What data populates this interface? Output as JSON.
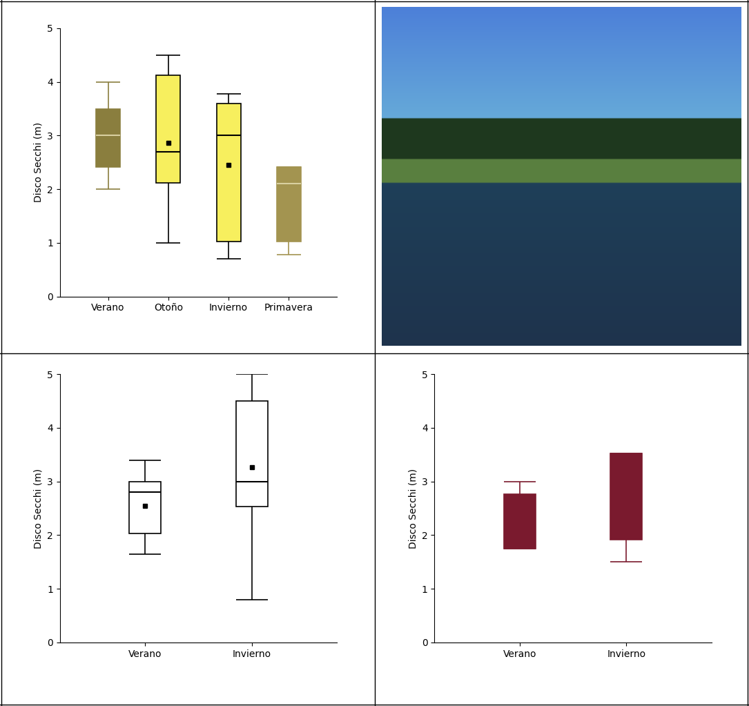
{
  "chart_data": [
    {
      "type": "box",
      "ylabel": "Disco Secchi (m)",
      "categories": [
        "Verano",
        "Otoño",
        "Invierno",
        "Primavera"
      ],
      "values": [
        {
          "whislo": 2.0,
          "q1": 2.42,
          "median": 3.0,
          "q3": 3.5,
          "whishi": 4.0,
          "mean": null
        },
        {
          "whislo": 1.0,
          "q1": 2.12,
          "median": 2.7,
          "q3": 4.12,
          "whishi": 4.5,
          "mean": 2.87
        },
        {
          "whislo": 0.7,
          "q1": 1.02,
          "median": 3.0,
          "q3": 3.6,
          "whishi": 3.78,
          "mean": 2.45
        },
        {
          "whislo": 0.78,
          "q1": 1.02,
          "median": 2.1,
          "q3": 2.42,
          "whishi": 2.42,
          "mean": null
        }
      ],
      "colors": [
        "#8a7e3e",
        "#f7ef5e",
        "#f7ef5e",
        "#a39450"
      ],
      "ylim": [
        0,
        5
      ],
      "yticks": [
        0,
        1,
        2,
        3,
        4,
        5
      ]
    },
    {
      "type": "box",
      "ylabel": "Disco Secchi (m)",
      "categories": [
        "Verano",
        "Invierno"
      ],
      "values": [
        {
          "whislo": 1.65,
          "q1": 2.03,
          "median": 2.8,
          "q3": 3.0,
          "whishi": 3.4,
          "mean": 2.55
        },
        {
          "whislo": 0.8,
          "q1": 2.53,
          "median": 3.0,
          "q3": 4.5,
          "whishi": 5.0,
          "mean": 3.27
        }
      ],
      "colors": [
        "#ffffff",
        "#ffffff"
      ],
      "ylim": [
        0,
        5
      ],
      "yticks": [
        0,
        1,
        2,
        3,
        4,
        5
      ]
    },
    {
      "type": "box",
      "ylabel": "Disco Secchi (m)",
      "categories": [
        "Verano",
        "Invierno"
      ],
      "values": [
        {
          "whislo": 1.75,
          "q1": 1.75,
          "median": null,
          "q3": 2.77,
          "whishi": 3.0,
          "mean": null
        },
        {
          "whislo": 1.5,
          "q1": 1.92,
          "median": null,
          "q3": 3.52,
          "whishi": 3.52,
          "mean": null
        }
      ],
      "colors": [
        "#7a1a2e",
        "#7a1a2e"
      ],
      "ylim": [
        0,
        5
      ],
      "yticks": [
        0,
        1,
        2,
        3,
        4,
        5
      ]
    }
  ]
}
